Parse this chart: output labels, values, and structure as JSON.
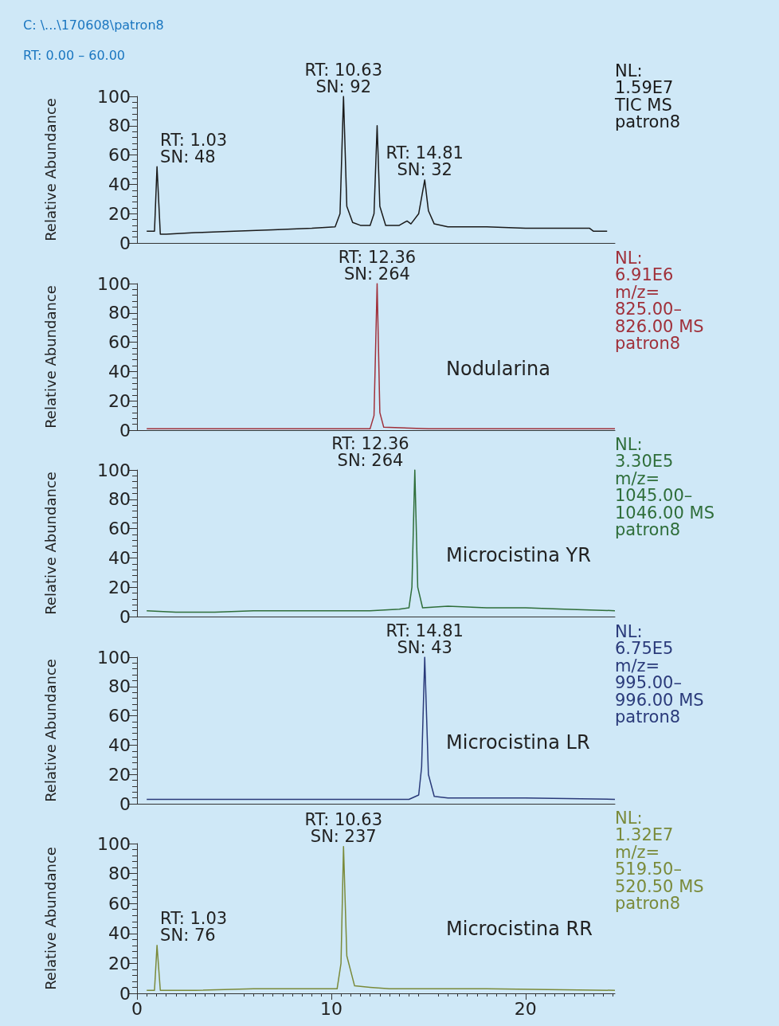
{
  "chart_data": [
    {
      "type": "line",
      "title": "C: \\...\\170608\\patron8",
      "subtitle": "RT: 0.00 – 60.00",
      "ylabel": "Relative Abundance",
      "xlim": [
        0,
        24.6
      ],
      "xticks": [
        0,
        10,
        20
      ],
      "ylim": [
        0,
        100
      ],
      "yticks": [
        0,
        20,
        40,
        60,
        80,
        100
      ],
      "tick_labels": "y",
      "grid": false,
      "marker": "none",
      "x": [
        0.5,
        0.9,
        1.03,
        1.2,
        1.5,
        3,
        5,
        7,
        9,
        10.2,
        10.45,
        10.63,
        10.8,
        11.1,
        11.5,
        12.0,
        12.2,
        12.36,
        12.5,
        12.8,
        13.5,
        13.9,
        14.1,
        14.5,
        14.81,
        15.0,
        15.3,
        16,
        18,
        20,
        22,
        23.3,
        23.5,
        24.2
      ],
      "series": [
        {
          "color": "#1a1a1a",
          "values": [
            8,
            8,
            52,
            6,
            6,
            7,
            8,
            9,
            10,
            11,
            20,
            100,
            25,
            14,
            12,
            12,
            20,
            80,
            25,
            12,
            12,
            15,
            13,
            20,
            43,
            22,
            13,
            11,
            11,
            10,
            10,
            10,
            8,
            8
          ]
        }
      ],
      "annotations": [
        "NL:\n1.59E7\nTIC MS\npatron8",
        {
          "text": "RT: 10.63\nSN: 92",
          "x": 10.63,
          "y": 100
        },
        {
          "text": "RT: 1.03\nSN: 48",
          "x": 1.03,
          "y": 52
        },
        {
          "text": "RT: 14.81\nSN: 32",
          "x": 14.81,
          "y": 43
        }
      ]
    },
    {
      "type": "line",
      "ylabel": "Relative Abundance",
      "xlim": [
        0,
        24.6
      ],
      "xticks": [
        0,
        10,
        20
      ],
      "ylim": [
        0,
        100
      ],
      "yticks": [
        0,
        20,
        40,
        60,
        80,
        100
      ],
      "tick_labels": "y",
      "grid": false,
      "marker": "none",
      "x": [
        0.5,
        5,
        10,
        12,
        12.2,
        12.36,
        12.5,
        12.7,
        15,
        20,
        24.6
      ],
      "series": [
        {
          "color": "#a0303a",
          "values": [
            1,
            1,
            1,
            1,
            10,
            100,
            12,
            2,
            1,
            1,
            1
          ]
        }
      ],
      "annotations": [
        "NL:\n6.91E6\nm/z=\n825.00–\n826.00 MS\npatron8",
        "Nodularina",
        {
          "text": "RT: 12.36\nSN: 264",
          "x": 12.36,
          "y": 100
        }
      ]
    },
    {
      "type": "line",
      "ylabel": "Relative Abundance",
      "xlim": [
        0,
        24.6
      ],
      "xticks": [
        0,
        10,
        20
      ],
      "ylim": [
        0,
        100
      ],
      "yticks": [
        0,
        20,
        40,
        60,
        80,
        100
      ],
      "tick_labels": "y",
      "grid": false,
      "marker": "none",
      "x": [
        0.5,
        2,
        4,
        6,
        8,
        10,
        12,
        13.5,
        14.0,
        14.15,
        14.3,
        14.45,
        14.7,
        16,
        18,
        20,
        22,
        24.6
      ],
      "series": [
        {
          "color": "#2f6e3a",
          "values": [
            4,
            3,
            3,
            4,
            4,
            4,
            4,
            5,
            6,
            20,
            100,
            20,
            6,
            7,
            6,
            6,
            5,
            4
          ]
        }
      ],
      "annotations": [
        "NL:\n3.30E5\nm/z=\n1045.00–\n1046.00 MS\npatron8",
        "Microcistina YR",
        "RT: 12.36\nSN: 264"
      ]
    },
    {
      "type": "line",
      "ylabel": "Relative Abundance",
      "xlim": [
        0,
        24.6
      ],
      "xticks": [
        0,
        10,
        20
      ],
      "ylim": [
        0,
        100
      ],
      "yticks": [
        0,
        20,
        40,
        60,
        80,
        100
      ],
      "tick_labels": "y",
      "grid": false,
      "marker": "none",
      "x": [
        0.5,
        3,
        6,
        9,
        12,
        14,
        14.5,
        14.65,
        14.81,
        15.0,
        15.3,
        16,
        20,
        24.6
      ],
      "series": [
        {
          "color": "#2a3a7a",
          "values": [
            3,
            3,
            3,
            3,
            3,
            3,
            6,
            25,
            100,
            20,
            5,
            4,
            4,
            3
          ]
        }
      ],
      "annotations": [
        "NL:\n6.75E5\nm/z=\n995.00–\n996.00 MS\npatron8",
        "Microcistina LR",
        {
          "text": "RT: 14.81\nSN: 43",
          "x": 14.81,
          "y": 100
        }
      ]
    },
    {
      "type": "line",
      "ylabel": "Relative Abundance",
      "xlim": [
        0,
        24.6
      ],
      "xticks": [
        0,
        10,
        20
      ],
      "ylim": [
        0,
        100
      ],
      "yticks": [
        0,
        20,
        40,
        60,
        80,
        100
      ],
      "grid": false,
      "marker": "none",
      "x": [
        0.5,
        0.9,
        1.03,
        1.2,
        3,
        6,
        9,
        10.3,
        10.5,
        10.63,
        10.8,
        11.2,
        12,
        13,
        18,
        24.6
      ],
      "series": [
        {
          "color": "#7a8a3a",
          "values": [
            2,
            2,
            32,
            2,
            2,
            3,
            3,
            3,
            20,
            98,
            25,
            5,
            4,
            3,
            3,
            2
          ]
        }
      ],
      "annotations": [
        "NL:\n1.32E7\nm/z=\n519.50–\n520.50 MS\npatron8",
        "Microcistina RR",
        {
          "text": "RT: 1.03\nSN: 76",
          "x": 1.03,
          "y": 32
        },
        {
          "text": "RT: 10.63\nSN: 237",
          "x": 10.63,
          "y": 98
        }
      ]
    }
  ]
}
